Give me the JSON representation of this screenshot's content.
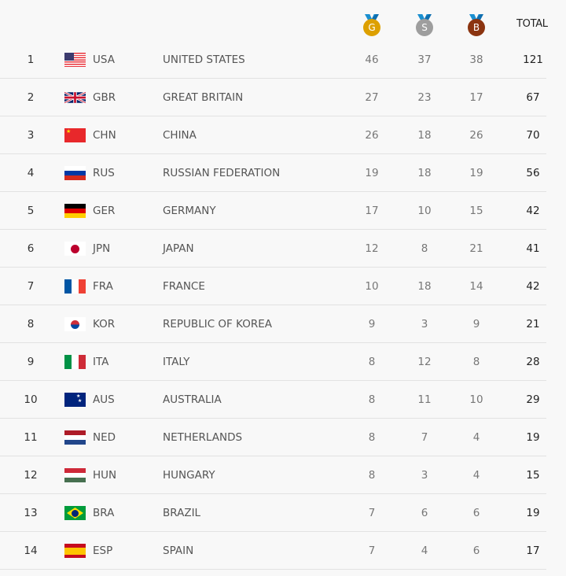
{
  "header": {
    "gold_label": "G",
    "silver_label": "S",
    "bronze_label": "B",
    "total_label": "TOTAL",
    "colors": {
      "gold": "#dda000",
      "silver": "#9e9e9e",
      "bronze": "#8b3410",
      "ribbon": "#1a8fd0"
    }
  },
  "rows": [
    {
      "rank": "1",
      "code": "USA",
      "name": "UNITED STATES",
      "gold": "46",
      "silver": "37",
      "bronze": "38",
      "total": "121",
      "flag": "usa"
    },
    {
      "rank": "2",
      "code": "GBR",
      "name": "GREAT BRITAIN",
      "gold": "27",
      "silver": "23",
      "bronze": "17",
      "total": "67",
      "flag": "gbr"
    },
    {
      "rank": "3",
      "code": "CHN",
      "name": "CHINA",
      "gold": "26",
      "silver": "18",
      "bronze": "26",
      "total": "70",
      "flag": "chn"
    },
    {
      "rank": "4",
      "code": "RUS",
      "name": "RUSSIAN FEDERATION",
      "gold": "19",
      "silver": "18",
      "bronze": "19",
      "total": "56",
      "flag": "rus"
    },
    {
      "rank": "5",
      "code": "GER",
      "name": "GERMANY",
      "gold": "17",
      "silver": "10",
      "bronze": "15",
      "total": "42",
      "flag": "ger"
    },
    {
      "rank": "6",
      "code": "JPN",
      "name": "JAPAN",
      "gold": "12",
      "silver": "8",
      "bronze": "21",
      "total": "41",
      "flag": "jpn"
    },
    {
      "rank": "7",
      "code": "FRA",
      "name": "FRANCE",
      "gold": "10",
      "silver": "18",
      "bronze": "14",
      "total": "42",
      "flag": "fra"
    },
    {
      "rank": "8",
      "code": "KOR",
      "name": "REPUBLIC OF KOREA",
      "gold": "9",
      "silver": "3",
      "bronze": "9",
      "total": "21",
      "flag": "kor"
    },
    {
      "rank": "9",
      "code": "ITA",
      "name": "ITALY",
      "gold": "8",
      "silver": "12",
      "bronze": "8",
      "total": "28",
      "flag": "ita"
    },
    {
      "rank": "10",
      "code": "AUS",
      "name": "AUSTRALIA",
      "gold": "8",
      "silver": "11",
      "bronze": "10",
      "total": "29",
      "flag": "aus"
    },
    {
      "rank": "11",
      "code": "NED",
      "name": "NETHERLANDS",
      "gold": "8",
      "silver": "7",
      "bronze": "4",
      "total": "19",
      "flag": "ned"
    },
    {
      "rank": "12",
      "code": "HUN",
      "name": "HUNGARY",
      "gold": "8",
      "silver": "3",
      "bronze": "4",
      "total": "15",
      "flag": "hun"
    },
    {
      "rank": "13",
      "code": "BRA",
      "name": "BRAZIL",
      "gold": "7",
      "silver": "6",
      "bronze": "6",
      "total": "19",
      "flag": "bra"
    },
    {
      "rank": "14",
      "code": "ESP",
      "name": "SPAIN",
      "gold": "7",
      "silver": "4",
      "bronze": "6",
      "total": "17",
      "flag": "esp"
    }
  ]
}
